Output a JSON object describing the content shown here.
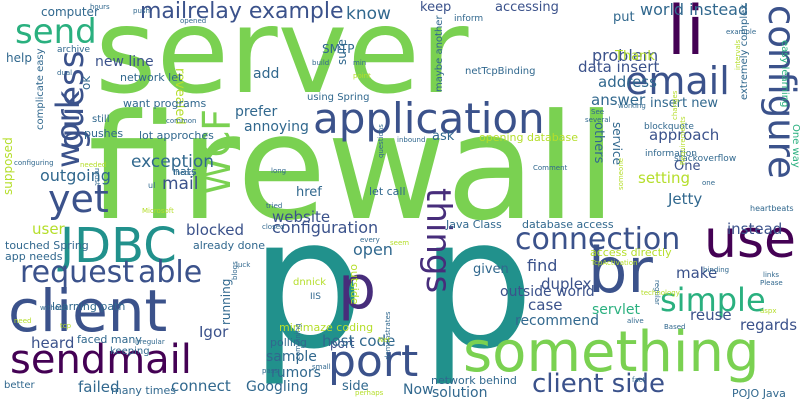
{
  "palette": {
    "green": "#7ad151",
    "teal": "#21918c",
    "blue": "#3b528b",
    "purple": "#440154",
    "aqua": "#2ab07f",
    "navy": "#31688e",
    "indigo": "#472d7b",
    "yellow": "#b5de2b",
    "lime": "#c8e020"
  },
  "words": [
    {
      "text": "server",
      "color": "green"
    },
    {
      "text": "firewall",
      "color": "green"
    },
    {
      "text": "p",
      "color": "teal"
    },
    {
      "text": "p",
      "color": "teal"
    },
    {
      "text": "something",
      "color": "green"
    },
    {
      "text": "li",
      "color": "purple"
    },
    {
      "text": "use",
      "color": "purple"
    },
    {
      "text": "br",
      "color": "blue"
    },
    {
      "text": "p",
      "color": "indigo"
    },
    {
      "text": "application",
      "color": "blue"
    },
    {
      "text": "client",
      "color": "blue"
    },
    {
      "text": "email",
      "color": "blue"
    },
    {
      "text": "configure",
      "color": "blue"
    },
    {
      "text": "JDBC",
      "color": "teal"
    },
    {
      "text": "sendmail",
      "color": "purple"
    },
    {
      "text": "connection",
      "color": "blue"
    },
    {
      "text": "port",
      "color": "blue"
    },
    {
      "text": "things",
      "color": "indigo"
    },
    {
      "text": "send",
      "color": "aqua"
    },
    {
      "text": "yet",
      "color": "blue"
    },
    {
      "text": "able",
      "color": "blue"
    },
    {
      "text": "WCF",
      "color": "green"
    },
    {
      "text": "simple",
      "color": "aqua"
    },
    {
      "text": "request",
      "color": "blue"
    },
    {
      "text": "client side",
      "color": "blue"
    },
    {
      "text": "guess",
      "color": "blue"
    },
    {
      "text": "work",
      "color": "blue"
    },
    {
      "text": "mailrelay example",
      "color": "blue"
    },
    {
      "text": "know",
      "color": "navy"
    },
    {
      "text": "world instead",
      "color": "navy"
    },
    {
      "text": "problem",
      "color": "blue"
    },
    {
      "text": "data insert",
      "color": "blue"
    },
    {
      "text": "address",
      "color": "navy"
    },
    {
      "text": "answer",
      "color": "navy"
    },
    {
      "text": "exception",
      "color": "navy"
    },
    {
      "text": "mail",
      "color": "blue"
    },
    {
      "text": "outgoing",
      "color": "navy"
    },
    {
      "text": "configuration",
      "color": "blue"
    },
    {
      "text": "website",
      "color": "blue"
    },
    {
      "text": "blocked",
      "color": "blue"
    },
    {
      "text": "open",
      "color": "navy"
    },
    {
      "text": "find",
      "color": "blue"
    },
    {
      "text": "duplex",
      "color": "blue"
    },
    {
      "text": "case",
      "color": "blue"
    },
    {
      "text": "servlet",
      "color": "aqua"
    },
    {
      "text": "outside world",
      "color": "blue"
    },
    {
      "text": "recommend",
      "color": "navy"
    },
    {
      "text": "reuse",
      "color": "blue"
    },
    {
      "text": "regards",
      "color": "blue"
    },
    {
      "text": "make",
      "color": "blue"
    },
    {
      "text": "instead",
      "color": "blue"
    },
    {
      "text": "Jetty",
      "color": "navy"
    },
    {
      "text": "setting",
      "color": "yellow"
    },
    {
      "text": "approach",
      "color": "blue"
    },
    {
      "text": "sample",
      "color": "navy"
    },
    {
      "text": "rumors",
      "color": "navy"
    },
    {
      "text": "port",
      "color": "blue"
    },
    {
      "text": "host code",
      "color": "navy"
    },
    {
      "text": "heard",
      "color": "blue"
    },
    {
      "text": "failed",
      "color": "navy"
    },
    {
      "text": "connect",
      "color": "navy"
    },
    {
      "text": "Googling",
      "color": "navy"
    },
    {
      "text": "solution",
      "color": "navy"
    },
    {
      "text": "Now",
      "color": "navy"
    },
    {
      "text": "side",
      "color": "navy"
    },
    {
      "text": "Igor",
      "color": "blue"
    },
    {
      "text": "user",
      "color": "yellow"
    },
    {
      "text": "add",
      "color": "navy"
    },
    {
      "text": "keep",
      "color": "blue"
    },
    {
      "text": "accessing",
      "color": "blue"
    },
    {
      "text": "put",
      "color": "navy"
    },
    {
      "text": "new line",
      "color": "blue"
    },
    {
      "text": "Thank",
      "color": "yellow"
    },
    {
      "text": "One",
      "color": "blue"
    },
    {
      "text": "insert new",
      "color": "navy"
    },
    {
      "text": "annoying",
      "color": "navy"
    },
    {
      "text": "prefer",
      "color": "navy"
    },
    {
      "text": "revealed",
      "color": "yellow"
    },
    {
      "text": "SMTP",
      "color": "navy"
    },
    {
      "text": "sure",
      "color": "navy"
    },
    {
      "text": "help",
      "color": "navy"
    },
    {
      "text": "computer",
      "color": "navy"
    },
    {
      "text": "ok",
      "color": "navy"
    },
    {
      "text": "want programs",
      "color": "navy"
    },
    {
      "text": "lot approches",
      "color": "navy"
    },
    {
      "text": "network let",
      "color": "navy"
    },
    {
      "text": "nats",
      "color": "navy"
    },
    {
      "text": "href",
      "color": "navy"
    },
    {
      "text": "let call",
      "color": "navy"
    },
    {
      "text": "ask",
      "color": "navy"
    },
    {
      "text": "others",
      "color": "navy"
    },
    {
      "text": "service",
      "color": "navy"
    },
    {
      "text": "opening database",
      "color": "yellow"
    },
    {
      "text": "Java Class",
      "color": "navy"
    },
    {
      "text": "database access",
      "color": "navy"
    },
    {
      "text": "access directly",
      "color": "yellow"
    },
    {
      "text": "given",
      "color": "navy"
    },
    {
      "text": "learning path",
      "color": "navy"
    },
    {
      "text": "touched Spring",
      "color": "navy"
    },
    {
      "text": "app needs",
      "color": "navy"
    },
    {
      "text": "already done",
      "color": "navy"
    },
    {
      "text": "minimaze coding",
      "color": "yellow"
    },
    {
      "text": "running",
      "color": "navy"
    },
    {
      "text": "polling",
      "color": "navy"
    },
    {
      "text": "network behind",
      "color": "navy"
    },
    {
      "text": "POJO Java",
      "color": "navy"
    },
    {
      "text": "many times",
      "color": "navy"
    },
    {
      "text": "faced many",
      "color": "navy"
    },
    {
      "text": "keeping",
      "color": "navy"
    },
    {
      "text": "better",
      "color": "navy"
    },
    {
      "text": "supposed",
      "color": "yellow"
    },
    {
      "text": "pushes",
      "color": "navy"
    },
    {
      "text": "complicate easy",
      "color": "navy"
    },
    {
      "text": "still",
      "color": "navy"
    },
    {
      "text": "archive",
      "color": "navy"
    },
    {
      "text": "using Spring",
      "color": "navy"
    },
    {
      "text": "maybe another",
      "color": "navy"
    },
    {
      "text": "inform",
      "color": "navy"
    },
    {
      "text": "netTcpBinding",
      "color": "navy"
    },
    {
      "text": "easy learning",
      "color": "aqua"
    },
    {
      "text": "One way",
      "color": "aqua"
    },
    {
      "text": "blockquote",
      "color": "navy"
    },
    {
      "text": "information",
      "color": "navy"
    },
    {
      "text": "stackoverflow",
      "color": "navy"
    },
    {
      "text": "extremely complex",
      "color": "navy"
    },
    {
      "text": "heartbeats",
      "color": "navy"
    },
    {
      "text": "outside",
      "color": "yellow"
    },
    {
      "text": "dnnick",
      "color": "yellow"
    },
    {
      "text": "IIS",
      "color": "navy"
    },
    {
      "text": "hours",
      "color": "navy"
    },
    {
      "text": "push",
      "color": "navy"
    },
    {
      "text": "opened",
      "color": "navy"
    },
    {
      "text": "build",
      "color": "navy"
    },
    {
      "text": "min",
      "color": "navy"
    },
    {
      "text": "dual",
      "color": "navy"
    },
    {
      "text": "point",
      "color": "yellow"
    },
    {
      "text": "must",
      "color": "navy"
    },
    {
      "text": "long",
      "color": "navy"
    },
    {
      "text": "tried",
      "color": "navy"
    },
    {
      "text": "every",
      "color": "navy"
    },
    {
      "text": "Microsoft",
      "color": "yellow"
    },
    {
      "text": "luck",
      "color": "navy"
    },
    {
      "text": "closed",
      "color": "navy"
    },
    {
      "text": "blogs",
      "color": "navy"
    },
    {
      "text": "TcpActivation",
      "color": "yellow"
    },
    {
      "text": "binding",
      "color": "navy"
    },
    {
      "text": "regular",
      "color": "navy"
    },
    {
      "text": "links",
      "color": "navy"
    },
    {
      "text": "Please",
      "color": "navy"
    },
    {
      "text": "aspx",
      "color": "yellow"
    },
    {
      "text": "alive",
      "color": "navy"
    },
    {
      "text": "Based",
      "color": "navy"
    },
    {
      "text": "irregular",
      "color": "navy"
    },
    {
      "text": "tcp",
      "color": "yellow"
    },
    {
      "text": "small",
      "color": "navy"
    },
    {
      "text": "pass",
      "color": "navy"
    },
    {
      "text": "perhaps",
      "color": "yellow"
    },
    {
      "text": "without",
      "color": "navy"
    },
    {
      "text": "fact",
      "color": "navy"
    },
    {
      "text": "need",
      "color": "yellow"
    },
    {
      "text": "ul",
      "color": "navy"
    },
    {
      "text": "theory",
      "color": "navy"
    },
    {
      "text": "configuring",
      "color": "navy"
    },
    {
      "text": "needed",
      "color": "yellow"
    },
    {
      "text": "common",
      "color": "navy"
    },
    {
      "text": "questions",
      "color": "navy"
    },
    {
      "text": "inbound",
      "color": "navy"
    },
    {
      "text": "Comment",
      "color": "navy"
    },
    {
      "text": "several",
      "color": "navy"
    },
    {
      "text": "See",
      "color": "navy"
    },
    {
      "text": "working",
      "color": "navy"
    },
    {
      "text": "Requirements",
      "color": "yellow"
    },
    {
      "text": "intervals",
      "color": "yellow"
    },
    {
      "text": "changes",
      "color": "yellow"
    },
    {
      "text": "example",
      "color": "navy"
    },
    {
      "text": "technology",
      "color": "yellow"
    },
    {
      "text": "demonstrates",
      "color": "navy"
    },
    {
      "text": "combining",
      "color": "navy"
    },
    {
      "text": "someone",
      "color": "yellow"
    },
    {
      "text": "seem",
      "color": "yellow"
    },
    {
      "text": "Net",
      "color": "yellow"
    },
    {
      "text": "one",
      "color": "navy"
    }
  ]
}
